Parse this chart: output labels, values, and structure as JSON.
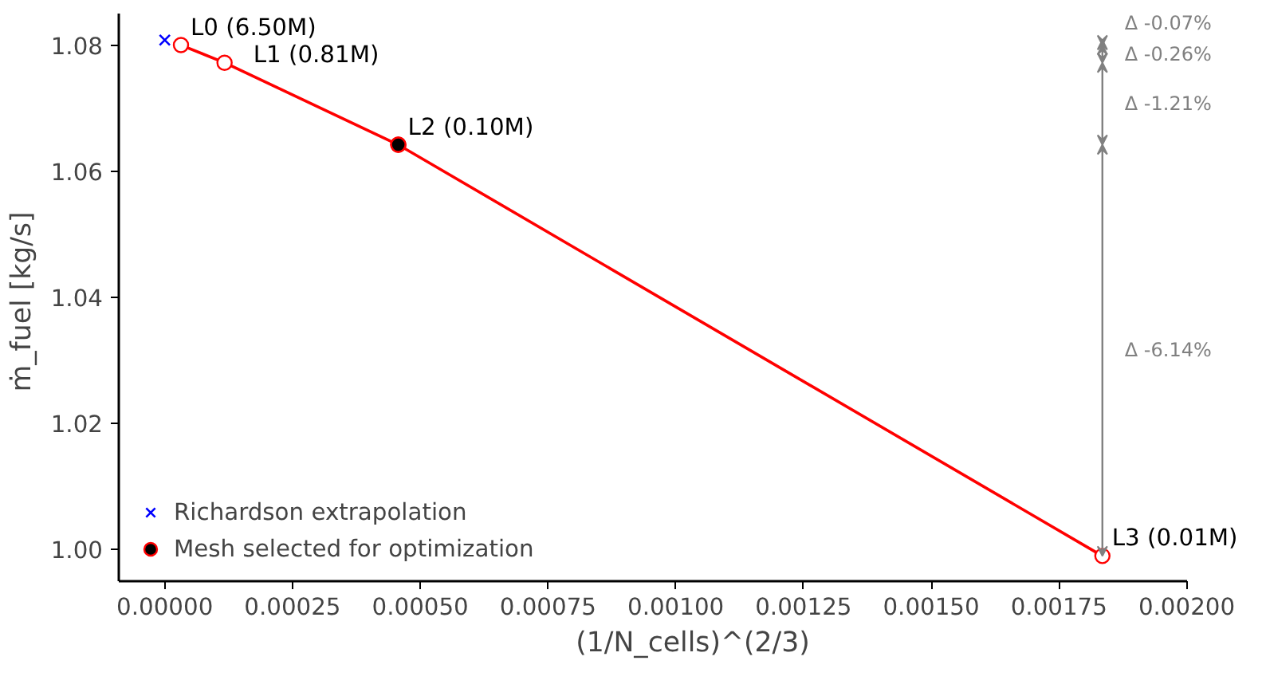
{
  "chart_data": {
    "type": "line",
    "xlabel": "(1/N_cells)^(2/3)",
    "ylabel": "ṁ_fuel  [kg/s]",
    "xlim": [
      -9e-05,
      0.002
    ],
    "ylim": [
      0.995,
      1.085
    ],
    "xticks": [
      {
        "value": 0,
        "label": "0.00000"
      },
      {
        "value": 0.00025,
        "label": "0.00025"
      },
      {
        "value": 0.0005,
        "label": "0.00050"
      },
      {
        "value": 0.00075,
        "label": "0.00075"
      },
      {
        "value": 0.001,
        "label": "0.00100"
      },
      {
        "value": 0.00125,
        "label": "0.00125"
      },
      {
        "value": 0.0015,
        "label": "0.00150"
      },
      {
        "value": 0.00175,
        "label": "0.00175"
      },
      {
        "value": 0.002,
        "label": "0.00200"
      }
    ],
    "yticks": [
      {
        "value": 1.0,
        "label": "1.00"
      },
      {
        "value": 1.02,
        "label": "1.02"
      },
      {
        "value": 1.04,
        "label": "1.04"
      },
      {
        "value": 1.06,
        "label": "1.06"
      },
      {
        "value": 1.08,
        "label": "1.08"
      }
    ],
    "grid": false,
    "legend": "bottom left",
    "series": [
      {
        "color": "#ff0000",
        "marker": "circle",
        "x": [
          3.17e-05,
          0.000117,
          0.000457,
          0.001835
        ],
        "values": [
          1.08,
          1.0772,
          1.0642,
          0.999
        ]
      },
      {
        "type": "scatter",
        "name": "Richardson extrapolation",
        "color": "#0000ff",
        "marker": "cross",
        "x": [
          0
        ],
        "values": [
          1.0808
        ]
      },
      {
        "type": "scatter",
        "name": "Mesh selected for optimization",
        "color": "#000000",
        "marker": "circle",
        "x": [
          0.000457
        ],
        "values": [
          1.0642
        ]
      }
    ],
    "annotations": [
      {
        "text": "L0 (6.50M)",
        "x": 3.17e-05,
        "y": 1.08
      },
      {
        "text": "L1 (0.81M)",
        "x": 0.000117,
        "y": 1.0772
      },
      {
        "text": "L2 (0.10M)",
        "x": 0.000457,
        "y": 1.0642
      },
      {
        "text": "L3 (0.01M)",
        "x": 0.001835,
        "y": 0.999
      },
      "Δ -0.07%",
      "Δ -0.26%",
      "Δ -1.21%",
      "Δ -6.14%"
    ]
  }
}
